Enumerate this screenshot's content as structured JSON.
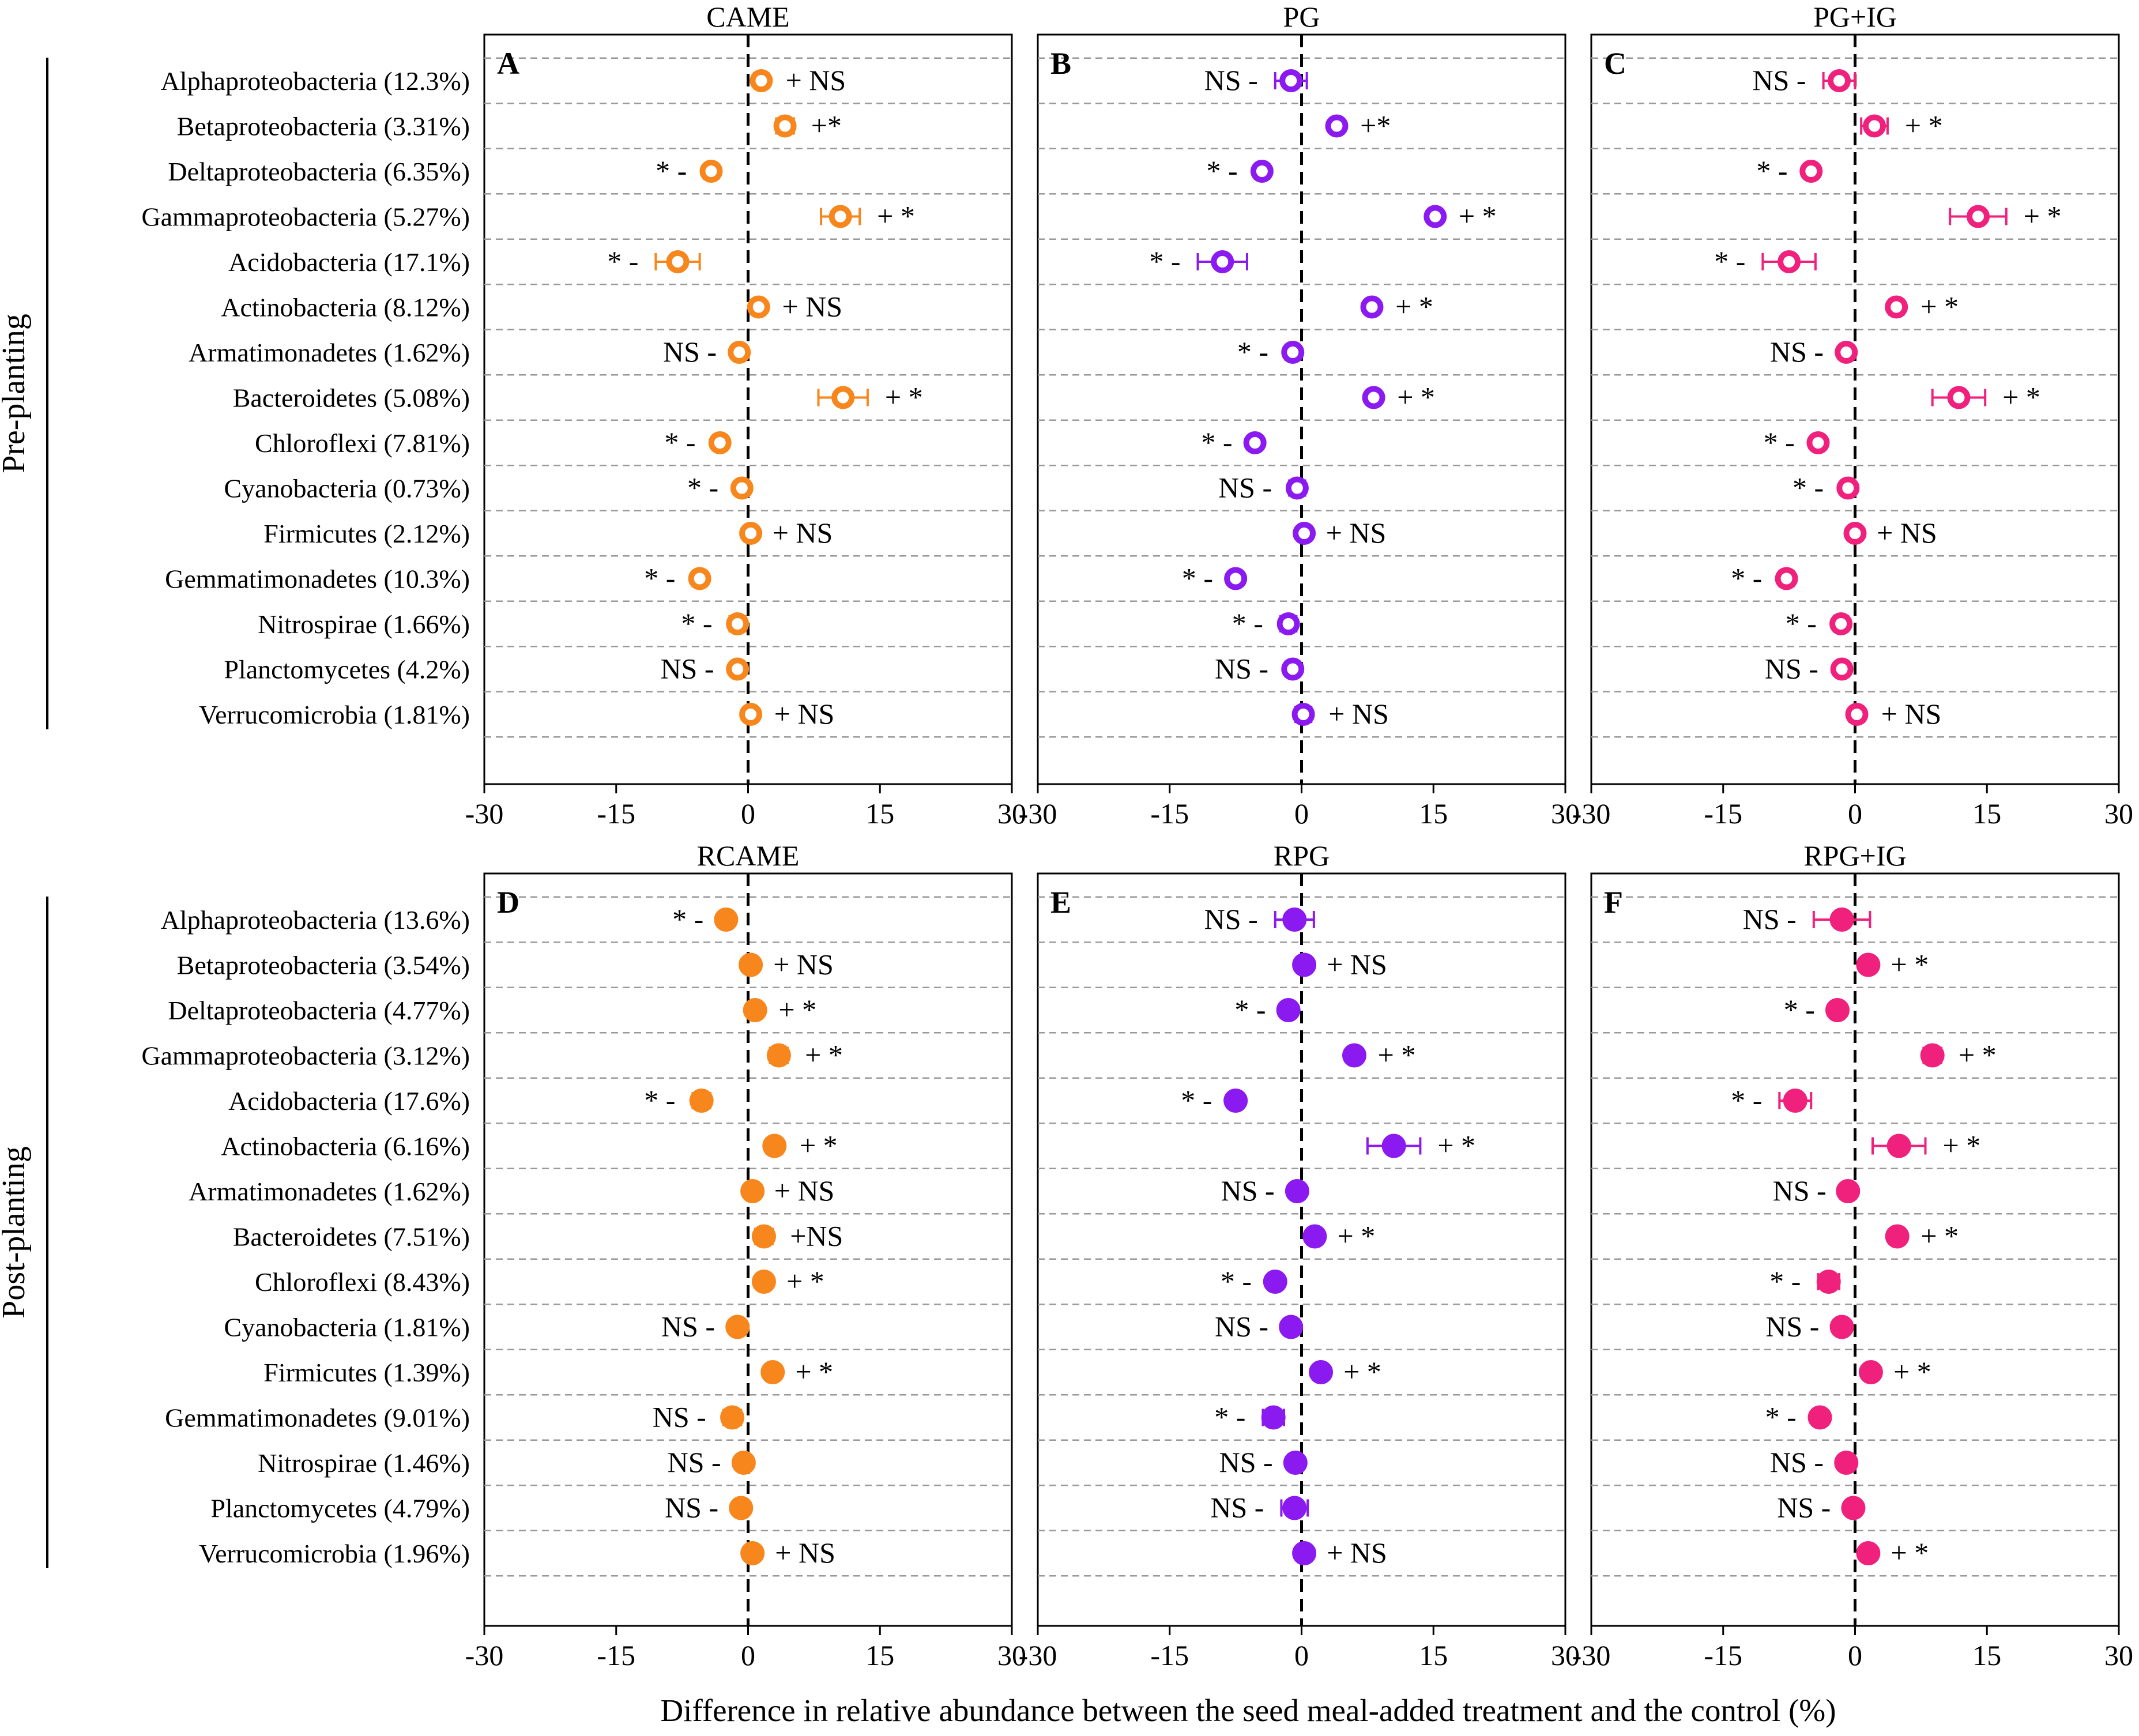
{
  "x_axis_label": "Difference in relative abundance between the seed meal-added treatment and the control (%)",
  "row_groups": [
    {
      "label": "Pre-planting"
    },
    {
      "label": "Post-planting"
    }
  ],
  "phyla": [
    "Alphaproteobacteria",
    "Betaproteobacteria",
    "Deltaproteobacteria",
    "Gammaproteobacteria",
    "Acidobacteria",
    "Actinobacteria",
    "Armatimonadetes",
    "Bacteroidetes",
    "Chloroflexi",
    "Cyanobacteria",
    "Firmicutes",
    "Gemmatimonadetes",
    "Nitrospirae",
    "Planctomycetes",
    "Verrucomicrobia"
  ],
  "row_labels": [
    [
      "Alphaproteobacteria (12.3%)",
      "Betaproteobacteria (3.31%)",
      "Deltaproteobacteria (6.35%)",
      "Gammaproteobacteria (5.27%)",
      "Acidobacteria (17.1%)",
      "Actinobacteria (8.12%)",
      "Armatimonadetes (1.62%)",
      "Bacteroidetes (5.08%)",
      "Chloroflexi (7.81%)",
      "Cyanobacteria (0.73%)",
      "Firmicutes (2.12%)",
      "Gemmatimonadetes (10.3%)",
      "Nitrospirae (1.66%)",
      "Planctomycetes (4.2%)",
      "Verrucomicrobia (1.81%)"
    ],
    [
      "Alphaproteobacteria (13.6%)",
      "Betaproteobacteria (3.54%)",
      "Deltaproteobacteria (4.77%)",
      "Gammaproteobacteria (3.12%)",
      "Acidobacteria (17.6%)",
      "Actinobacteria (6.16%)",
      "Armatimonadetes (1.62%)",
      "Bacteroidetes (7.51%)",
      "Chloroflexi (8.43%)",
      "Cyanobacteria (1.81%)",
      "Firmicutes (1.39%)",
      "Gemmatimonadetes (9.01%)",
      "Nitrospirae (1.46%)",
      "Planctomycetes (4.79%)",
      "Verrucomicrobia (1.96%)"
    ]
  ],
  "colors": {
    "orange": "#F7861C",
    "purple": "#8B1AF0",
    "pink": "#F0217C",
    "grid": "#9a9a9a"
  },
  "chart_data": [
    {
      "type": "scatter",
      "panel": "A",
      "title": "CAME",
      "row_group": 0,
      "marker": "open",
      "color_key": "orange",
      "xlim": [
        -30,
        30
      ],
      "xticks": [
        -30,
        -15,
        0,
        15,
        30
      ],
      "values": [
        1.5,
        4.2,
        -4.2,
        10.5,
        -8.0,
        1.2,
        -1.0,
        10.8,
        -3.2,
        -0.7,
        0.3,
        -5.5,
        -1.2,
        -1.2,
        0.3
      ],
      "errors": [
        0.8,
        1.0,
        0.8,
        2.2,
        2.5,
        0.7,
        0.6,
        2.8,
        0.8,
        0.7,
        0.5,
        0.8,
        0.9,
        0.7,
        0.7
      ],
      "significance": [
        "+ NS",
        "+*",
        "* -",
        "+ *",
        "* -",
        "+ NS",
        "NS -",
        "+ *",
        "* -",
        "* -",
        "+ NS",
        "* -",
        "* -",
        "NS -",
        "+ NS"
      ]
    },
    {
      "type": "scatter",
      "panel": "B",
      "title": "PG",
      "row_group": 0,
      "marker": "open",
      "color_key": "purple",
      "xlim": [
        -30,
        30
      ],
      "xticks": [
        -30,
        -15,
        0,
        15,
        30
      ],
      "values": [
        -1.2,
        4.0,
        -4.5,
        15.2,
        -9.0,
        8.0,
        -1.0,
        8.2,
        -5.3,
        -0.5,
        0.3,
        -7.5,
        -1.5,
        -1.0,
        0.2
      ],
      "errors": [
        1.8,
        0.7,
        0.8,
        0.7,
        2.8,
        0.7,
        0.8,
        0.7,
        0.6,
        0.9,
        0.5,
        0.6,
        0.9,
        0.8,
        0.9
      ],
      "significance": [
        "NS -",
        "+*",
        "* -",
        "+ *",
        "* -",
        "+ *",
        "* -",
        "+ *",
        "* -",
        "NS -",
        "+ NS",
        "* -",
        "* -",
        "NS -",
        "+ NS"
      ]
    },
    {
      "type": "scatter",
      "panel": "C",
      "title": "PG+IG",
      "row_group": 0,
      "marker": "open",
      "color_key": "pink",
      "xlim": [
        -30,
        30
      ],
      "xticks": [
        -30,
        -15,
        0,
        15,
        30
      ],
      "values": [
        -1.8,
        2.2,
        -5.0,
        14.0,
        -7.5,
        4.7,
        -1.0,
        11.8,
        -4.2,
        -0.8,
        0.0,
        -7.8,
        -1.6,
        -1.5,
        0.2
      ],
      "errors": [
        1.8,
        1.5,
        0.7,
        3.2,
        3.0,
        0.8,
        0.6,
        3.0,
        0.7,
        0.8,
        0.5,
        0.8,
        0.8,
        0.7,
        0.8
      ],
      "significance": [
        "NS -",
        "+ *",
        "* -",
        "+ *",
        "* -",
        "+ *",
        "NS -",
        "+ *",
        "* -",
        "* -",
        "+ NS",
        "* -",
        "* -",
        "NS -",
        "+ NS"
      ]
    },
    {
      "type": "scatter",
      "panel": "D",
      "title": "RCAME",
      "row_group": 1,
      "marker": "filled",
      "color_key": "orange",
      "xlim": [
        -30,
        30
      ],
      "xticks": [
        -30,
        -15,
        0,
        15,
        30
      ],
      "values": [
        -2.5,
        0.3,
        0.8,
        3.5,
        -5.3,
        3.0,
        0.5,
        1.8,
        1.8,
        -1.2,
        2.8,
        -1.8,
        -0.5,
        -0.8,
        0.5
      ],
      "errors": [
        0.6,
        0.6,
        0.7,
        1.0,
        1.0,
        0.9,
        0.5,
        1.0,
        0.6,
        0.6,
        0.6,
        1.0,
        0.6,
        0.6,
        0.6
      ],
      "significance": [
        "* -",
        "+ NS",
        "+ *",
        "+ *",
        "* -",
        "+ *",
        "+ NS",
        "+NS",
        "+ *",
        "NS -",
        "+ *",
        "NS -",
        "NS -",
        "NS -",
        "+ NS"
      ]
    },
    {
      "type": "scatter",
      "panel": "E",
      "title": "RPG",
      "row_group": 1,
      "marker": "filled",
      "color_key": "purple",
      "xlim": [
        -30,
        30
      ],
      "xticks": [
        -30,
        -15,
        0,
        15,
        30
      ],
      "values": [
        -0.8,
        0.3,
        -1.5,
        6.0,
        -7.5,
        10.5,
        -0.5,
        1.5,
        -3.0,
        -1.2,
        2.2,
        -3.2,
        -0.7,
        -0.8,
        0.3
      ],
      "errors": [
        2.2,
        0.6,
        0.6,
        0.7,
        0.7,
        3.0,
        0.6,
        0.6,
        0.7,
        0.6,
        0.6,
        1.2,
        0.6,
        1.5,
        0.6
      ],
      "significance": [
        "NS -",
        "+ NS",
        "* -",
        "+ *",
        "* -",
        "+ *",
        "NS -",
        "+ *",
        "* -",
        "NS -",
        "+ *",
        "* -",
        "NS -",
        "NS -",
        "+ NS"
      ]
    },
    {
      "type": "scatter",
      "panel": "F",
      "title": "RPG+IG",
      "row_group": 1,
      "marker": "filled",
      "color_key": "pink",
      "xlim": [
        -30,
        30
      ],
      "xticks": [
        -30,
        -15,
        0,
        15,
        30
      ],
      "values": [
        -1.5,
        1.5,
        -2.0,
        8.8,
        -6.8,
        5.0,
        -0.8,
        4.8,
        -3.0,
        -1.5,
        1.8,
        -4.0,
        -1.0,
        -0.2,
        1.5
      ],
      "errors": [
        3.2,
        0.6,
        0.6,
        1.0,
        1.8,
        3.0,
        0.5,
        0.7,
        1.2,
        0.6,
        0.6,
        0.7,
        0.6,
        0.6,
        0.6
      ],
      "significance": [
        "NS -",
        "+ *",
        "* -",
        "+ *",
        "* -",
        "+ *",
        "NS -",
        "+ *",
        "* -",
        "NS -",
        "+ *",
        "* -",
        "NS -",
        "NS -",
        "+ *"
      ]
    }
  ]
}
